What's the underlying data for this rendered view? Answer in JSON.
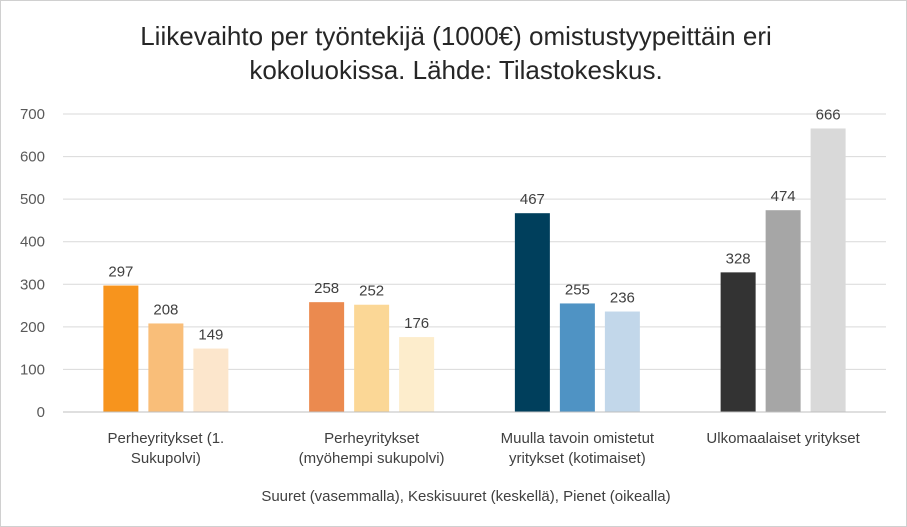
{
  "chart_data": {
    "type": "bar",
    "title_lines": [
      "Liikevaihto per työntekijä (1000€) omistustyypeittäin eri",
      "kokoluokissa. Lähde: Tilastokeskus."
    ],
    "xlabel": "Suuret (vasemmalla), Keskisuuret (keskellä), Pienet (oikealla)",
    "ylabel": "",
    "ylim": [
      0,
      700
    ],
    "yticks": [
      0,
      100,
      200,
      300,
      400,
      500,
      600,
      700
    ],
    "grid": true,
    "legend": "none",
    "groups": [
      {
        "label_lines": [
          "Perheyritykset (1.",
          "Sukupolvi)"
        ],
        "values": [
          297,
          208,
          149
        ],
        "colors": [
          "#F7941D",
          "#F9BE79",
          "#FCE6CC"
        ]
      },
      {
        "label_lines": [
          "Perheyritykset",
          "(myöhempi sukupolvi)"
        ],
        "values": [
          258,
          252,
          176
        ],
        "colors": [
          "#EB8A4F",
          "#FBD796",
          "#FDEDCC"
        ]
      },
      {
        "label_lines": [
          "Muulla tavoin omistetut",
          "yritykset (kotimaiset)"
        ],
        "values": [
          467,
          255,
          236
        ],
        "colors": [
          "#003F5C",
          "#4F93C4",
          "#C2D7EA"
        ]
      },
      {
        "label_lines": [
          "Ulkomaalaiset yritykset"
        ],
        "values": [
          328,
          474,
          666
        ],
        "colors": [
          "#333333",
          "#A6A6A6",
          "#D9D9D9"
        ]
      }
    ]
  }
}
